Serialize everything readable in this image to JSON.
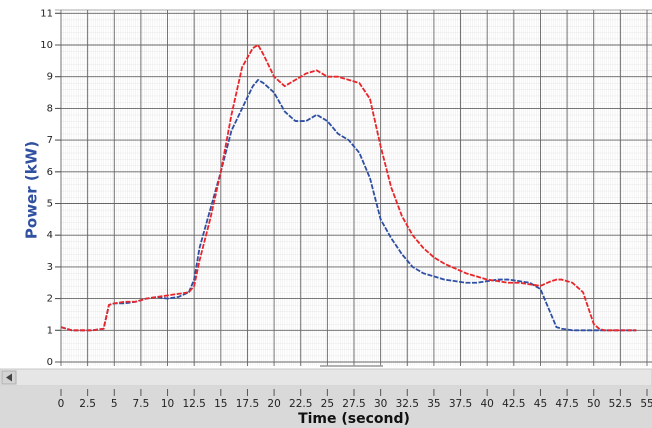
{
  "chart_data": {
    "type": "line",
    "xlabel": "Time (second)",
    "ylabel": "Power (kW)",
    "xlim": [
      0,
      55
    ],
    "ylim": [
      0,
      11
    ],
    "xticks": [
      0,
      2.5,
      5,
      7.5,
      10,
      12.5,
      15,
      17.5,
      20,
      22.5,
      25,
      27.5,
      30,
      32.5,
      35,
      37.5,
      40,
      42.5,
      45,
      47.5,
      50,
      52.5,
      55
    ],
    "yticks": [
      0,
      1,
      2,
      3,
      4,
      5,
      6,
      7,
      8,
      9,
      10,
      11
    ],
    "grid": true,
    "x": [
      0,
      1,
      2,
      3,
      4,
      4.5,
      5,
      6,
      7,
      8,
      9,
      10,
      11,
      12,
      12.5,
      13,
      14,
      15,
      16,
      17,
      18,
      18.5,
      19,
      20,
      21,
      22,
      23,
      24,
      25,
      26,
      27,
      28,
      29,
      30,
      31,
      32,
      33,
      34,
      35,
      36,
      37,
      38,
      39,
      40,
      41,
      42,
      43,
      44,
      45,
      46,
      46.5,
      47,
      48,
      49,
      50,
      50.5,
      51,
      52,
      53,
      54
    ],
    "series": [
      {
        "color": "#2e4fa3",
        "values": [
          1.1,
          1.0,
          1.0,
          1.0,
          1.05,
          1.8,
          1.85,
          1.85,
          1.9,
          2.0,
          2.05,
          2.0,
          2.05,
          2.2,
          2.6,
          3.6,
          4.8,
          6.0,
          7.3,
          8.0,
          8.7,
          8.9,
          8.8,
          8.5,
          7.9,
          7.6,
          7.6,
          7.8,
          7.6,
          7.2,
          7.0,
          6.6,
          5.8,
          4.5,
          3.9,
          3.4,
          3.0,
          2.8,
          2.7,
          2.6,
          2.55,
          2.5,
          2.5,
          2.55,
          2.6,
          2.6,
          2.55,
          2.5,
          2.3,
          1.5,
          1.1,
          1.05,
          1.0,
          1.0,
          1.0,
          1.0,
          1.0,
          1.0,
          1.0,
          1.0
        ]
      },
      {
        "color": "#e8262a",
        "values": [
          1.1,
          1.0,
          1.0,
          1.0,
          1.05,
          1.8,
          1.85,
          1.9,
          1.9,
          2.0,
          2.05,
          2.1,
          2.15,
          2.2,
          2.4,
          3.2,
          4.5,
          6.0,
          7.8,
          9.3,
          9.9,
          10.0,
          9.7,
          9.0,
          8.7,
          8.9,
          9.1,
          9.2,
          9.0,
          9.0,
          8.9,
          8.8,
          8.3,
          6.8,
          5.5,
          4.6,
          4.0,
          3.6,
          3.3,
          3.1,
          2.95,
          2.8,
          2.7,
          2.6,
          2.55,
          2.5,
          2.5,
          2.45,
          2.4,
          2.55,
          2.6,
          2.6,
          2.5,
          2.2,
          1.2,
          1.05,
          1.0,
          1.0,
          1.0,
          1.0
        ]
      }
    ]
  }
}
